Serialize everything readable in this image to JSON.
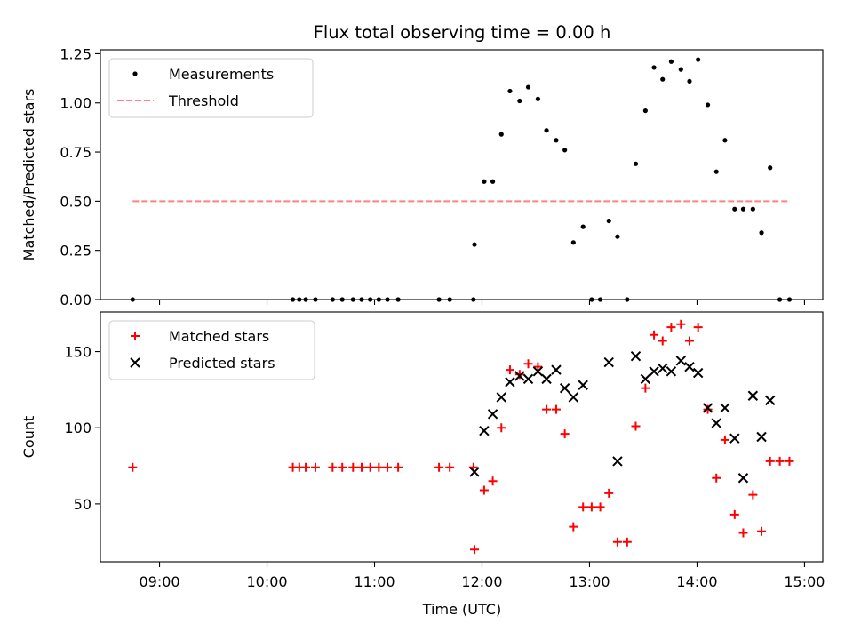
{
  "chart_data": {
    "type": "scatter",
    "title": "Flux total observing time = 0.00 h",
    "xlabel": "Time (UTC)",
    "x_tick_labels": [
      "09:00",
      "10:00",
      "11:00",
      "12:00",
      "13:00",
      "14:00",
      "15:00"
    ],
    "x_tick_values": [
      9,
      10,
      11,
      12,
      13,
      14,
      15
    ],
    "xlim": [
      8.45,
      15.17
    ],
    "colors": {
      "measurements": "#000000",
      "threshold": "#ff8080",
      "matched": "#ff0000",
      "predicted": "#000000"
    },
    "panels": [
      {
        "ylabel": "Matched/Predicted stars",
        "ylim": [
          0,
          1.27
        ],
        "y_tick_values": [
          0,
          0.25,
          0.5,
          0.75,
          1.0,
          1.25
        ],
        "y_tick_labels": [
          "0.00",
          "0.25",
          "0.50",
          "0.75",
          "1.00",
          "1.25"
        ],
        "legend": {
          "location": "upper-left",
          "entries": [
            "Measurements",
            "Threshold"
          ]
        },
        "series": [
          {
            "name": "Measurements",
            "kind": "scatter",
            "x": [
              8.75,
              10.24,
              10.3,
              10.36,
              10.45,
              10.61,
              10.7,
              10.8,
              10.88,
              10.96,
              11.04,
              11.12,
              11.22,
              11.6,
              11.7,
              11.92,
              11.93,
              12.02,
              12.1,
              12.18,
              12.26,
              12.35,
              12.43,
              12.52,
              12.6,
              12.69,
              12.77,
              12.85,
              12.94,
              13.02,
              13.1,
              13.18,
              13.26,
              13.35,
              13.43,
              13.52,
              13.6,
              13.68,
              13.76,
              13.85,
              13.93,
              14.01,
              14.1,
              14.18,
              14.26,
              14.35,
              14.43,
              14.52,
              14.6,
              14.68,
              14.77,
              14.86
            ],
            "y": [
              0.0,
              0.0,
              0.0,
              0.0,
              0.0,
              0.0,
              0.0,
              0.0,
              0.0,
              0.0,
              0.0,
              0.0,
              0.0,
              0.0,
              0.0,
              0.0,
              0.28,
              0.6,
              0.6,
              0.84,
              1.06,
              1.01,
              1.08,
              1.02,
              0.86,
              0.81,
              0.76,
              0.29,
              0.37,
              0.0,
              0.0,
              0.4,
              0.32,
              0.0,
              0.69,
              0.96,
              1.18,
              1.12,
              1.21,
              1.17,
              1.11,
              1.22,
              0.99,
              0.65,
              0.81,
              0.46,
              0.46,
              0.46,
              0.34,
              0.67,
              0.0,
              0.0
            ]
          },
          {
            "name": "Threshold",
            "kind": "line",
            "x": [
              8.75,
              14.86
            ],
            "y": [
              0.5,
              0.5
            ]
          }
        ]
      },
      {
        "ylabel": "Count",
        "ylim": [
          12,
          176
        ],
        "y_tick_values": [
          50,
          100,
          150
        ],
        "y_tick_labels": [
          "50",
          "100",
          "150"
        ],
        "legend": {
          "location": "upper-left",
          "entries": [
            "Matched stars",
            "Predicted stars"
          ]
        },
        "series": [
          {
            "name": "Matched stars",
            "kind": "scatter-plus",
            "x": [
              8.75,
              10.24,
              10.3,
              10.36,
              10.45,
              10.61,
              10.7,
              10.8,
              10.88,
              10.96,
              11.04,
              11.12,
              11.22,
              11.6,
              11.7,
              11.92,
              11.93,
              12.02,
              12.1,
              12.18,
              12.26,
              12.35,
              12.43,
              12.52,
              12.6,
              12.69,
              12.77,
              12.85,
              12.94,
              13.02,
              13.1,
              13.18,
              13.26,
              13.35,
              13.43,
              13.52,
              13.6,
              13.68,
              13.76,
              13.85,
              13.93,
              14.01,
              14.1,
              14.18,
              14.26,
              14.35,
              14.43,
              14.52,
              14.6,
              14.68,
              14.77,
              14.86
            ],
            "y": [
              74,
              74,
              74,
              74,
              74,
              74,
              74,
              74,
              74,
              74,
              74,
              74,
              74,
              74,
              74,
              74,
              20,
              59,
              65,
              100,
              138,
              135,
              142,
              140,
              112,
              112,
              96,
              35,
              48,
              48,
              48,
              57,
              25,
              25,
              101,
              126,
              161,
              157,
              166,
              168,
              157,
              166,
              112,
              67,
              92,
              43,
              31,
              56,
              32,
              78,
              78,
              78
            ]
          },
          {
            "name": "Predicted stars",
            "kind": "scatter-x",
            "x": [
              11.93,
              12.02,
              12.1,
              12.18,
              12.26,
              12.35,
              12.43,
              12.52,
              12.6,
              12.69,
              12.77,
              12.85,
              12.94,
              13.18,
              13.26,
              13.43,
              13.52,
              13.6,
              13.68,
              13.76,
              13.85,
              13.93,
              14.01,
              14.1,
              14.18,
              14.26,
              14.35,
              14.43,
              14.52,
              14.6,
              14.68
            ],
            "y": [
              71,
              98,
              109,
              120,
              130,
              134,
              132,
              137,
              132,
              138,
              126,
              120,
              128,
              143,
              78,
              147,
              132,
              137,
              139,
              137,
              144,
              140,
              136,
              113,
              103,
              113,
              93,
              67,
              121,
              94,
              118
            ]
          }
        ]
      }
    ]
  }
}
